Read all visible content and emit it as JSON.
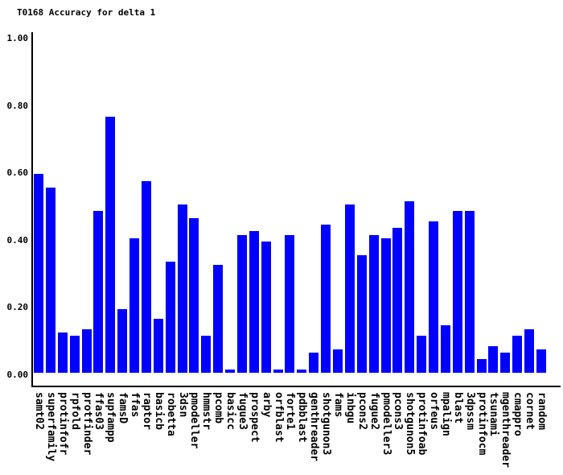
{
  "title": "T0168 Accuracy for delta 1",
  "colors": {
    "bar": "#0000ff",
    "axis": "#000000",
    "text": "#000000",
    "background": "#ffffff"
  },
  "chart_data": {
    "type": "bar",
    "title": "T0168 Accuracy for delta 1",
    "xlabel": "",
    "ylabel": "",
    "ylim": [
      0.0,
      1.0
    ],
    "grid": false,
    "legend_position": "none",
    "yticks": [
      {
        "label": "1.00",
        "value": 1.0
      },
      {
        "label": "0.80",
        "value": 0.8
      },
      {
        "label": "0.60",
        "value": 0.6
      },
      {
        "label": "0.40",
        "value": 0.4
      },
      {
        "label": "0.20",
        "value": 0.2
      },
      {
        "label": "0.00",
        "value": 0.0
      }
    ],
    "categories": [
      "samt02",
      "superfamily",
      "protinfofr",
      "rpfold",
      "protfinder",
      "ffas03",
      "supfampp",
      "famsD",
      "ffas",
      "raptor",
      "basicb",
      "robetta",
      "3dsn",
      "pmodeller",
      "hmmstr",
      "pcomb",
      "basicc",
      "fugue3",
      "prospect",
      "arby",
      "orfblast",
      "forte1",
      "pdbblast",
      "genthreader",
      "shotgunon3",
      "fams",
      "inbgu",
      "pcons2",
      "fugue2",
      "pmodeller3",
      "pcons3",
      "shotgunon5",
      "protinfoab",
      "orfeus",
      "mpalign",
      "blast",
      "3dpssm",
      "protinfocm",
      "tsunami",
      "mgenthreader",
      "cmappro",
      "cornet",
      "random"
    ],
    "values": [
      0.59,
      0.55,
      0.12,
      0.11,
      0.13,
      0.48,
      0.76,
      0.19,
      0.4,
      0.57,
      0.16,
      0.33,
      0.5,
      0.46,
      0.11,
      0.32,
      0.01,
      0.41,
      0.42,
      0.39,
      0.01,
      0.41,
      0.01,
      0.06,
      0.44,
      0.07,
      0.5,
      0.35,
      0.41,
      0.4,
      0.43,
      0.51,
      0.11,
      0.45,
      0.14,
      0.48,
      0.48,
      0.04,
      0.08,
      0.06,
      0.11,
      0.13,
      0.07
    ]
  }
}
